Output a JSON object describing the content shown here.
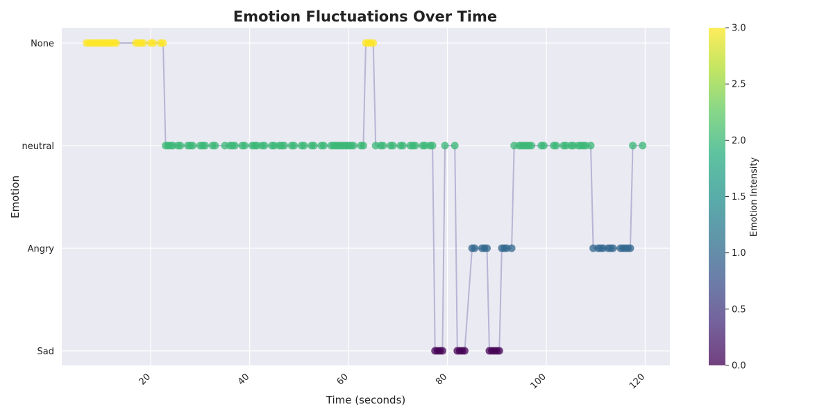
{
  "chart_data": {
    "type": "scatter",
    "title": "Emotion Fluctuations Over Time",
    "xlabel": "Time (seconds)",
    "ylabel": "Emotion",
    "xlim": [
      2,
      125
    ],
    "x_ticks": [
      20,
      40,
      60,
      80,
      100,
      120
    ],
    "y_categories": [
      "Sad",
      "Angry",
      "neutral",
      "None"
    ],
    "grid": true,
    "colorbar": {
      "label": "Emotion Intensity",
      "range": [
        0,
        3
      ],
      "ticks": [
        "0.0",
        "0.5",
        "1.0",
        "1.5",
        "2.0",
        "2.5",
        "3.0"
      ],
      "colormap": "viridis"
    },
    "series": [
      {
        "x": [
          7.0,
          7.5,
          8.0,
          8.5,
          9.0,
          9.5,
          10.0,
          10.5,
          11.0,
          11.5,
          12.0,
          12.5,
          13.0,
          17.0,
          17.5,
          18.0,
          18.5,
          20.0,
          20.5,
          22.0,
          22.5,
          23.0,
          23.5,
          24.0,
          24.5,
          25.5,
          26.0,
          27.5,
          28.0,
          28.5,
          30.0,
          30.5,
          31.0,
          32.5,
          33.0,
          35.0,
          36.0,
          36.5,
          37.0,
          38.5,
          39.0,
          40.5,
          41.0,
          41.5,
          42.5,
          43.0,
          44.5,
          45.0,
          46.0,
          46.5,
          47.0,
          48.5,
          49.0,
          50.5,
          51.0,
          52.5,
          53.0,
          54.5,
          55.0,
          56.5,
          57.0,
          57.5,
          58.0,
          58.5,
          59.0,
          59.5,
          60.0,
          60.5,
          61.0,
          62.5,
          63.0,
          63.5,
          64.0,
          64.5,
          65.0,
          65.5,
          66.5,
          67.0,
          68.5,
          69.0,
          70.5,
          71.0,
          72.5,
          73.0,
          73.5,
          75.0,
          75.5,
          76.5,
          77.0,
          77.5,
          78.0,
          78.5,
          79.0,
          79.5,
          81.5,
          82.0,
          82.5,
          83.0,
          83.5,
          85.0,
          85.5,
          87.0,
          87.5,
          88.0,
          88.5,
          89.0,
          89.5,
          90.0,
          90.5,
          91.0,
          91.5,
          92.0,
          93.0,
          93.5,
          94.5,
          95.0,
          95.5,
          96.0,
          96.5,
          97.0,
          99.0,
          99.5,
          101.5,
          102.0,
          103.5,
          104.0,
          105.0,
          105.5,
          106.5,
          107.0,
          107.5,
          108.0,
          109.0,
          109.5,
          110.5,
          111.0,
          111.5,
          112.5,
          113.0,
          113.5,
          115.0,
          115.5,
          116.0,
          116.5,
          117.0,
          117.5,
          119.5
        ],
        "emotion": [
          "None",
          "None",
          "None",
          "None",
          "None",
          "None",
          "None",
          "None",
          "None",
          "None",
          "None",
          "None",
          "None",
          "None",
          "None",
          "None",
          "None",
          "None",
          "None",
          "None",
          "None",
          "neutral",
          "neutral",
          "neutral",
          "neutral",
          "neutral",
          "neutral",
          "neutral",
          "neutral",
          "neutral",
          "neutral",
          "neutral",
          "neutral",
          "neutral",
          "neutral",
          "neutral",
          "neutral",
          "neutral",
          "neutral",
          "neutral",
          "neutral",
          "neutral",
          "neutral",
          "neutral",
          "neutral",
          "neutral",
          "neutral",
          "neutral",
          "neutral",
          "neutral",
          "neutral",
          "neutral",
          "neutral",
          "neutral",
          "neutral",
          "neutral",
          "neutral",
          "neutral",
          "neutral",
          "neutral",
          "neutral",
          "neutral",
          "neutral",
          "neutral",
          "neutral",
          "neutral",
          "neutral",
          "neutral",
          "neutral",
          "neutral",
          "neutral",
          "None",
          "None",
          "None",
          "None",
          "neutral",
          "neutral",
          "neutral",
          "neutral",
          "neutral",
          "neutral",
          "neutral",
          "neutral",
          "neutral",
          "neutral",
          "neutral",
          "neutral",
          "neutral",
          "neutral",
          "Sad",
          "Sad",
          "Sad",
          "Sad",
          "neutral",
          "neutral",
          "Sad",
          "Sad",
          "Sad",
          "Sad",
          "Angry",
          "Angry",
          "Angry",
          "Angry",
          "Angry",
          "Sad",
          "Sad",
          "Sad",
          "Sad",
          "Sad",
          "Angry",
          "Angry",
          "Angry",
          "Angry",
          "neutral",
          "neutral",
          "neutral",
          "neutral",
          "neutral",
          "neutral",
          "neutral",
          "neutral",
          "neutral",
          "neutral",
          "neutral",
          "neutral",
          "neutral",
          "neutral",
          "neutral",
          "neutral",
          "neutral",
          "neutral",
          "neutral",
          "neutral",
          "Angry",
          "Angry",
          "Angry",
          "Angry",
          "Angry",
          "Angry",
          "Angry",
          "Angry",
          "Angry",
          "Angry",
          "Angry",
          "Angry",
          "neutral",
          "neutral",
          "neutral",
          "neutral"
        ],
        "intensity": [
          3.0,
          3.0,
          3.0,
          3.0,
          3.0,
          3.0,
          3.0,
          3.0,
          3.0,
          3.0,
          3.0,
          3.0,
          3.0,
          3.0,
          3.0,
          3.0,
          3.0,
          3.0,
          3.0,
          3.0,
          3.0,
          2.0,
          2.0,
          2.0,
          2.0,
          2.0,
          2.0,
          2.0,
          2.0,
          2.0,
          2.0,
          2.0,
          2.0,
          2.0,
          2.0,
          2.0,
          2.0,
          2.0,
          2.0,
          2.0,
          2.0,
          2.0,
          2.0,
          2.0,
          2.0,
          2.0,
          2.0,
          2.0,
          2.0,
          2.0,
          2.0,
          2.0,
          2.0,
          2.0,
          2.0,
          2.0,
          2.0,
          2.0,
          2.0,
          2.0,
          2.0,
          2.0,
          2.0,
          2.0,
          2.0,
          2.0,
          2.0,
          2.0,
          2.0,
          2.0,
          2.0,
          3.0,
          3.0,
          3.0,
          3.0,
          2.0,
          2.0,
          2.0,
          2.0,
          2.0,
          2.0,
          2.0,
          2.0,
          2.0,
          2.0,
          2.0,
          2.0,
          2.0,
          2.0,
          0.0,
          0.0,
          0.0,
          0.0,
          2.0,
          2.0,
          0.0,
          0.0,
          0.0,
          0.0,
          1.0,
          1.0,
          1.0,
          1.0,
          1.0,
          0.0,
          0.0,
          0.0,
          0.0,
          0.0,
          1.0,
          1.0,
          1.0,
          1.0,
          2.0,
          2.0,
          2.0,
          2.0,
          2.0,
          2.0,
          2.0,
          2.0,
          2.0,
          2.0,
          2.0,
          2.0,
          2.0,
          2.0,
          2.0,
          2.0,
          2.0,
          2.0,
          2.0,
          2.0,
          1.0,
          1.0,
          1.0,
          1.0,
          1.0,
          1.0,
          1.0,
          1.0,
          1.0,
          1.0,
          1.0,
          1.0,
          2.0,
          2.0,
          2.0,
          2.0
        ]
      }
    ]
  }
}
